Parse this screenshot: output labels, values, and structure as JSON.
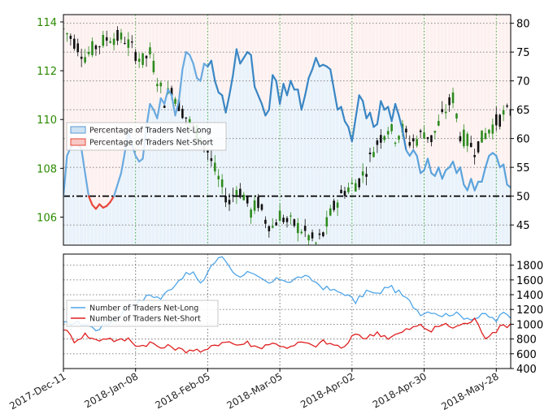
{
  "chart_data": [
    {
      "type": "candlestick+line",
      "name": "price-and-sentiment",
      "left_axis": {
        "ticks": [
          106,
          108,
          110,
          112,
          114
        ],
        "ylim": [
          104.85,
          114.3
        ],
        "color": "#2a8a00"
      },
      "right_axis": {
        "ticks": [
          45,
          50,
          55,
          60,
          65,
          70,
          75,
          80
        ],
        "ylim": [
          41.5,
          81.5
        ]
      },
      "reference_line": {
        "value": 50,
        "style": "dash-dot"
      },
      "legend": [
        {
          "label": "Percentage of Traders Net-Long",
          "color": "#5b9bd5",
          "fill": "#cfe2f3"
        },
        {
          "label": "Percentage of Traders Net-Short",
          "color": "#e8483a",
          "fill": "#f8c9c4"
        }
      ],
      "price_path": [
        [
          0,
          113.7
        ],
        [
          3,
          113.2
        ],
        [
          6,
          112.6
        ],
        [
          9,
          113.0
        ],
        [
          13,
          113.4
        ],
        [
          17,
          113.3
        ],
        [
          19,
          112.9
        ],
        [
          22,
          112.4
        ],
        [
          24,
          112.7
        ],
        [
          26,
          111.7
        ],
        [
          28,
          110.8
        ],
        [
          30,
          111.3
        ],
        [
          32,
          110.6
        ],
        [
          34,
          110.1
        ],
        [
          36,
          109.6
        ],
        [
          38,
          109.4
        ],
        [
          40,
          108.7
        ],
        [
          42,
          107.9
        ],
        [
          44,
          107.2
        ],
        [
          46,
          106.6
        ],
        [
          48,
          107.2
        ],
        [
          50,
          106.9
        ],
        [
          52,
          106.2
        ],
        [
          54,
          106.6
        ],
        [
          56,
          105.9
        ],
        [
          58,
          105.6
        ],
        [
          60,
          106.1
        ],
        [
          62,
          105.8
        ],
        [
          64,
          105.7
        ],
        [
          66,
          105.5
        ],
        [
          68,
          105.2
        ],
        [
          70,
          104.9
        ],
        [
          72,
          105.3
        ],
        [
          74,
          106.1
        ],
        [
          76,
          106.7
        ],
        [
          78,
          107.1
        ],
        [
          80,
          107.3
        ],
        [
          82,
          107.5
        ],
        [
          84,
          108.0
        ],
        [
          86,
          108.8
        ],
        [
          88,
          109.3
        ],
        [
          90,
          109.7
        ],
        [
          92,
          109.3
        ],
        [
          94,
          109.6
        ],
        [
          96,
          109.1
        ],
        [
          98,
          109.2
        ],
        [
          100,
          109.5
        ],
        [
          102,
          109.2
        ],
        [
          104,
          109.8
        ],
        [
          106,
          110.4
        ],
        [
          108,
          110.9
        ],
        [
          110,
          109.4
        ],
        [
          112,
          109.1
        ],
        [
          114,
          108.8
        ],
        [
          116,
          109.2
        ],
        [
          118,
          109.6
        ],
        [
          120,
          109.9
        ],
        [
          122,
          110.2
        ],
        [
          124,
          110.3
        ]
      ],
      "net_long_pct_path": [
        [
          0,
          50.0
        ],
        [
          1,
          57.0
        ],
        [
          2,
          58.5
        ],
        [
          3,
          59.2
        ],
        [
          4,
          59.0
        ],
        [
          5,
          58.2
        ],
        [
          6,
          54.0
        ],
        [
          7,
          50.0
        ],
        [
          8,
          48.5
        ],
        [
          9,
          47.8
        ],
        [
          10,
          48.6
        ],
        [
          11,
          48.0
        ],
        [
          12,
          48.3
        ],
        [
          13,
          49.0
        ],
        [
          14,
          50.0
        ],
        [
          15,
          52.0
        ],
        [
          16,
          54.0
        ],
        [
          17,
          57.5
        ],
        [
          18,
          61.0
        ],
        [
          19,
          59.0
        ],
        [
          20,
          57.0
        ],
        [
          21,
          56.0
        ],
        [
          22,
          56.5
        ],
        [
          23,
          62.0
        ],
        [
          24,
          66.0
        ],
        [
          25,
          65.0
        ],
        [
          26,
          63.5
        ],
        [
          27,
          67.0
        ],
        [
          28,
          66.0
        ],
        [
          29,
          68.5
        ],
        [
          30,
          67.5
        ],
        [
          31,
          64.0
        ],
        [
          32,
          66.5
        ],
        [
          33,
          72.0
        ],
        [
          34,
          75.0
        ],
        [
          35,
          74.5
        ],
        [
          36,
          73.0
        ],
        [
          37,
          70.5
        ],
        [
          38,
          70.0
        ],
        [
          39,
          73.0
        ],
        [
          40,
          72.5
        ],
        [
          41,
          73.5
        ],
        [
          42,
          70.0
        ],
        [
          43,
          68.0
        ],
        [
          44,
          67.5
        ],
        [
          45,
          64.5
        ],
        [
          46,
          67.5
        ],
        [
          47,
          71.0
        ],
        [
          48,
          75.5
        ],
        [
          49,
          73.0
        ],
        [
          50,
          74.0
        ],
        [
          51,
          75.0
        ],
        [
          52,
          74.5
        ],
        [
          53,
          69.0
        ],
        [
          54,
          67.5
        ],
        [
          55,
          66.0
        ],
        [
          56,
          64.0
        ],
        [
          57,
          65.0
        ],
        [
          58,
          71.0
        ],
        [
          59,
          70.0
        ],
        [
          60,
          66.0
        ],
        [
          61,
          69.5
        ],
        [
          62,
          67.5
        ],
        [
          63,
          70.0
        ],
        [
          64,
          68.5
        ],
        [
          65,
          68.5
        ],
        [
          66,
          65.0
        ],
        [
          67,
          67.5
        ],
        [
          68,
          70.5
        ],
        [
          69,
          72.0
        ],
        [
          70,
          74.0
        ],
        [
          71,
          72.5
        ],
        [
          72,
          72.8
        ],
        [
          73,
          72.5
        ],
        [
          74,
          72.0
        ],
        [
          75,
          68.5
        ],
        [
          76,
          65.0
        ],
        [
          77,
          65.5
        ],
        [
          78,
          63.0
        ],
        [
          79,
          62.0
        ],
        [
          80,
          59.5
        ],
        [
          81,
          63.5
        ],
        [
          82,
          67.5
        ],
        [
          83,
          66.5
        ],
        [
          84,
          63.5
        ],
        [
          85,
          64.5
        ],
        [
          86,
          62.0
        ],
        [
          87,
          62.5
        ],
        [
          88,
          66.5
        ],
        [
          89,
          65.0
        ],
        [
          90,
          65.5
        ],
        [
          91,
          63.0
        ],
        [
          92,
          66.0
        ],
        [
          93,
          64.0
        ],
        [
          94,
          61.5
        ],
        [
          95,
          58.0
        ],
        [
          96,
          57.0
        ],
        [
          97,
          58.0
        ],
        [
          98,
          57.0
        ],
        [
          99,
          54.0
        ],
        [
          100,
          54.5
        ],
        [
          101,
          56.5
        ],
        [
          102,
          54.0
        ],
        [
          103,
          53.5
        ],
        [
          104,
          55.0
        ],
        [
          105,
          53.0
        ],
        [
          106,
          54.5
        ],
        [
          107,
          55.0
        ],
        [
          108,
          56.0
        ],
        [
          109,
          54.0
        ],
        [
          110,
          55.0
        ],
        [
          111,
          52.0
        ],
        [
          112,
          51.0
        ],
        [
          113,
          53.0
        ],
        [
          114,
          51.0
        ],
        [
          115,
          52.5
        ],
        [
          116,
          52.5
        ],
        [
          117,
          55.0
        ],
        [
          118,
          57.0
        ],
        [
          119,
          57.5
        ],
        [
          120,
          57.0
        ],
        [
          121,
          55.0
        ],
        [
          122,
          55.5
        ],
        [
          123,
          52.0
        ],
        [
          124,
          51.5
        ]
      ]
    },
    {
      "type": "line",
      "name": "trader-counts",
      "ylim": [
        400,
        1950
      ],
      "yticks": [
        400,
        600,
        800,
        1000,
        1200,
        1400,
        1600,
        1800
      ],
      "x_tick_labels": [
        "2017-Dec-11",
        "2018-Jan-08",
        "2018-Feb-05",
        "2018-Mar-05",
        "2018-Apr-02",
        "2018-Apr-30",
        "2018-May-28"
      ],
      "x_tick_positions": [
        0,
        20,
        40,
        60,
        80,
        100,
        120
      ],
      "series": [
        {
          "name": "Number of Traders Net-Long",
          "color": "#4ea5e8",
          "values": [
            [
              0,
              1000
            ],
            [
              3,
              1020
            ],
            [
              6,
              1000
            ],
            [
              9,
              930
            ],
            [
              12,
              1000
            ],
            [
              15,
              1100
            ],
            [
              18,
              1250
            ],
            [
              21,
              1300
            ],
            [
              24,
              1400
            ],
            [
              27,
              1350
            ],
            [
              30,
              1500
            ],
            [
              33,
              1650
            ],
            [
              36,
              1700
            ],
            [
              38,
              1530
            ],
            [
              41,
              1800
            ],
            [
              44,
              1920
            ],
            [
              46,
              1800
            ],
            [
              48,
              1650
            ],
            [
              51,
              1700
            ],
            [
              54,
              1620
            ],
            [
              57,
              1550
            ],
            [
              60,
              1620
            ],
            [
              63,
              1580
            ],
            [
              66,
              1650
            ],
            [
              69,
              1600
            ],
            [
              72,
              1500
            ],
            [
              75,
              1450
            ],
            [
              78,
              1420
            ],
            [
              81,
              1300
            ],
            [
              84,
              1450
            ],
            [
              87,
              1400
            ],
            [
              90,
              1520
            ],
            [
              93,
              1430
            ],
            [
              96,
              1300
            ],
            [
              99,
              1150
            ],
            [
              102,
              1180
            ],
            [
              105,
              1120
            ],
            [
              108,
              1150
            ],
            [
              111,
              1100
            ],
            [
              114,
              1080
            ],
            [
              117,
              1130
            ],
            [
              120,
              1050
            ],
            [
              122,
              1150
            ],
            [
              124,
              1100
            ]
          ]
        },
        {
          "name": "Number of Traders Net-Short",
          "color": "#e02020",
          "values": [
            [
              0,
              950
            ],
            [
              3,
              780
            ],
            [
              6,
              860
            ],
            [
              9,
              780
            ],
            [
              12,
              820
            ],
            [
              15,
              770
            ],
            [
              18,
              800
            ],
            [
              21,
              700
            ],
            [
              24,
              750
            ],
            [
              27,
              680
            ],
            [
              30,
              700
            ],
            [
              33,
              640
            ],
            [
              36,
              660
            ],
            [
              39,
              620
            ],
            [
              42,
              720
            ],
            [
              45,
              780
            ],
            [
              48,
              720
            ],
            [
              51,
              750
            ],
            [
              54,
              680
            ],
            [
              57,
              740
            ],
            [
              60,
              720
            ],
            [
              63,
              680
            ],
            [
              66,
              760
            ],
            [
              69,
              700
            ],
            [
              72,
              760
            ],
            [
              75,
              720
            ],
            [
              78,
              680
            ],
            [
              81,
              880
            ],
            [
              84,
              810
            ],
            [
              87,
              890
            ],
            [
              90,
              820
            ],
            [
              93,
              870
            ],
            [
              96,
              940
            ],
            [
              99,
              980
            ],
            [
              102,
              910
            ],
            [
              105,
              1000
            ],
            [
              108,
              960
            ],
            [
              111,
              1000
            ],
            [
              114,
              1060
            ],
            [
              117,
              830
            ],
            [
              120,
              920
            ],
            [
              122,
              980
            ],
            [
              124,
              1000
            ]
          ]
        }
      ]
    }
  ]
}
